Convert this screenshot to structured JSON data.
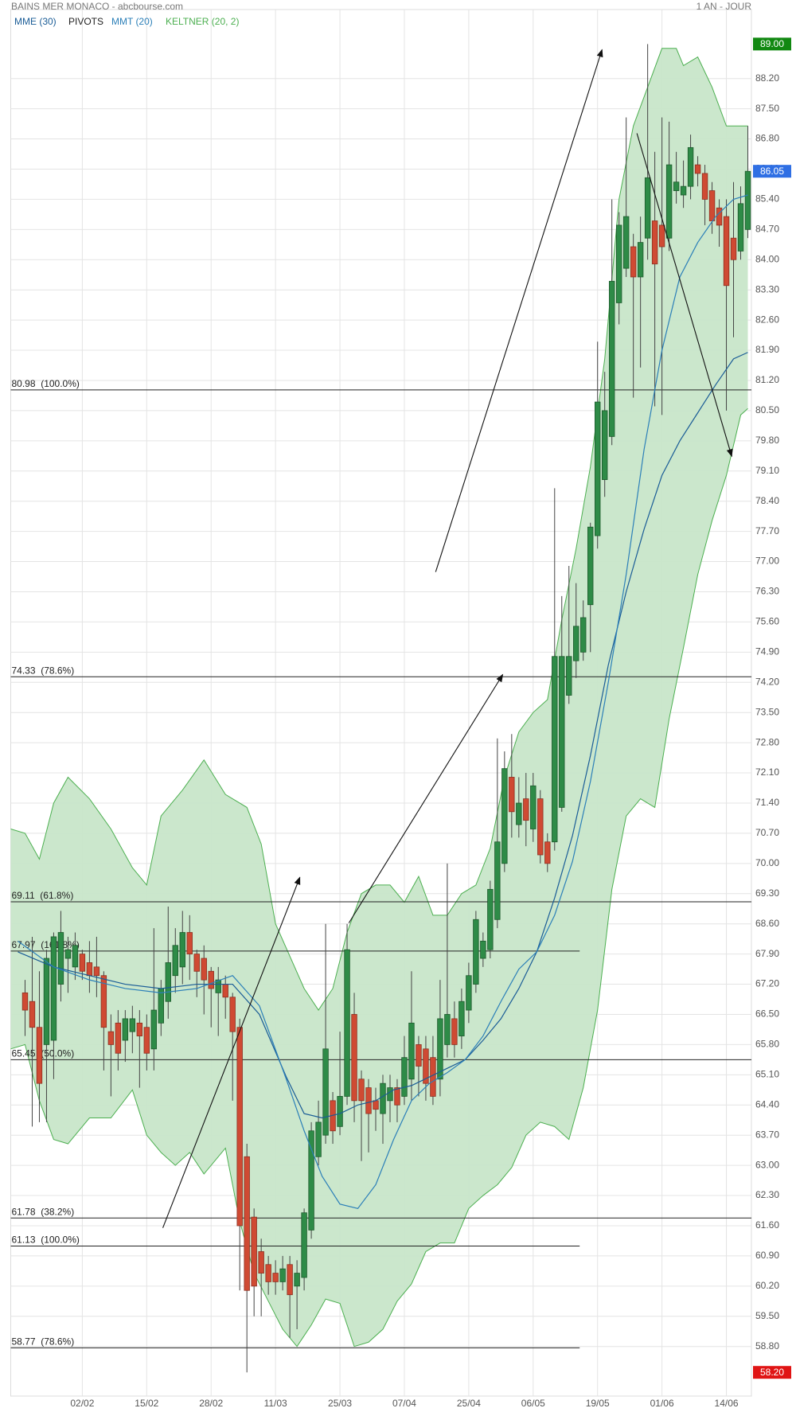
{
  "chart_data": {
    "type": "candlestick",
    "title": "BAINS MER MONACO - abcbourse.com",
    "period": "1 AN - JOUR",
    "up_color": "#2e8b47",
    "down_color": "#cf4a33",
    "grid": true,
    "xlim": [
      -2,
      101.5
    ],
    "xticks": [
      {
        "value": 8,
        "label": "02/02"
      },
      {
        "value": 17,
        "label": "15/02"
      },
      {
        "value": 26,
        "label": "28/02"
      },
      {
        "value": 35,
        "label": "11/03"
      },
      {
        "value": 44,
        "label": "25/03"
      },
      {
        "value": 53,
        "label": "07/04"
      },
      {
        "value": 62,
        "label": "25/04"
      },
      {
        "value": 71,
        "label": "06/05"
      },
      {
        "value": 80,
        "label": "19/05"
      },
      {
        "value": 89,
        "label": "01/06"
      },
      {
        "value": 98,
        "label": "14/06"
      }
    ],
    "ylim": [
      57.65,
      89.8
    ],
    "yticks": [
      {
        "value": 58.8,
        "label": "58.80"
      },
      {
        "value": 59.5,
        "label": "59.50"
      },
      {
        "value": 60.2,
        "label": "60.20"
      },
      {
        "value": 60.9,
        "label": "60.90"
      },
      {
        "value": 61.6,
        "label": "61.60"
      },
      {
        "value": 62.3,
        "label": "62.30"
      },
      {
        "value": 63.0,
        "label": "63.00"
      },
      {
        "value": 63.7,
        "label": "63.70"
      },
      {
        "value": 64.4,
        "label": "64.40"
      },
      {
        "value": 65.1,
        "label": "65.10"
      },
      {
        "value": 65.8,
        "label": "65.80"
      },
      {
        "value": 66.5,
        "label": "66.50"
      },
      {
        "value": 67.2,
        "label": "67.20"
      },
      {
        "value": 67.9,
        "label": "67.90"
      },
      {
        "value": 68.6,
        "label": "68.60"
      },
      {
        "value": 69.3,
        "label": "69.30"
      },
      {
        "value": 70.0,
        "label": "70.00"
      },
      {
        "value": 70.7,
        "label": "70.70"
      },
      {
        "value": 71.4,
        "label": "71.40"
      },
      {
        "value": 72.1,
        "label": "72.10"
      },
      {
        "value": 72.8,
        "label": "72.80"
      },
      {
        "value": 73.5,
        "label": "73.50"
      },
      {
        "value": 74.2,
        "label": "74.20"
      },
      {
        "value": 74.9,
        "label": "74.90"
      },
      {
        "value": 75.6,
        "label": "75.60"
      },
      {
        "value": 76.3,
        "label": "76.30"
      },
      {
        "value": 77.0,
        "label": "77.00"
      },
      {
        "value": 77.7,
        "label": "77.70"
      },
      {
        "value": 78.4,
        "label": "78.40"
      },
      {
        "value": 79.1,
        "label": "79.10"
      },
      {
        "value": 79.8,
        "label": "79.80"
      },
      {
        "value": 80.5,
        "label": "80.50"
      },
      {
        "value": 81.2,
        "label": "81.20"
      },
      {
        "value": 81.9,
        "label": "81.90"
      },
      {
        "value": 82.6,
        "label": "82.60"
      },
      {
        "value": 83.3,
        "label": "83.30"
      },
      {
        "value": 84.0,
        "label": "84.00"
      },
      {
        "value": 84.7,
        "label": "84.70"
      },
      {
        "value": 85.4,
        "label": "85.40"
      },
      {
        "value": 86.1,
        "label": "86.10"
      },
      {
        "value": 86.8,
        "label": "86.80"
      },
      {
        "value": 87.5,
        "label": "87.50"
      },
      {
        "value": 88.2,
        "label": "88.20"
      }
    ],
    "open": [
      67.0,
      66.8,
      66.2,
      65.8,
      65.9,
      67.2,
      67.8,
      67.6,
      67.9,
      67.7,
      67.6,
      67.4,
      66.1,
      66.3,
      65.9,
      66.1,
      66.3,
      66.2,
      65.7,
      66.3,
      66.8,
      67.4,
      67.6,
      68.4,
      67.9,
      67.8,
      67.5,
      67.0,
      67.2,
      66.9,
      66.2,
      63.2,
      61.8,
      61.0,
      60.7,
      60.5,
      60.3,
      60.7,
      60.2,
      60.4,
      61.5,
      63.2,
      63.7,
      64.5,
      63.9,
      64.6,
      66.5,
      65.0,
      64.8,
      64.5,
      64.2,
      64.5,
      64.8,
      64.6,
      65.0,
      65.8,
      65.7,
      65.5,
      65.0,
      65.8,
      66.4,
      66.0,
      66.6,
      67.2,
      67.8,
      68.0,
      68.7,
      70.0,
      72.0,
      70.9,
      71.5,
      70.8,
      71.5,
      70.5,
      70.5,
      71.3,
      73.9,
      74.7,
      74.9,
      76.0,
      77.6,
      78.9,
      79.9,
      83.0,
      83.8,
      84.3,
      83.6,
      84.5,
      84.9,
      84.8,
      84.5,
      85.6,
      85.5,
      85.7,
      86.2,
      86.0,
      85.6,
      85.2,
      85.0,
      84.5,
      84.2,
      84.7
    ],
    "high": [
      67.3,
      68.3,
      67.5,
      68.0,
      68.4,
      68.9,
      68.3,
      68.4,
      68.0,
      68.2,
      68.3,
      67.5,
      66.5,
      66.6,
      66.6,
      66.7,
      66.6,
      66.5,
      68.5,
      67.3,
      69.0,
      68.5,
      68.9,
      68.8,
      68.0,
      68.1,
      67.6,
      67.6,
      67.4,
      67.0,
      66.4,
      63.5,
      62.0,
      61.3,
      60.9,
      60.8,
      60.9,
      60.9,
      60.8,
      62.0,
      64.0,
      64.5,
      68.6,
      64.7,
      66.1,
      68.6,
      67.0,
      65.2,
      65.0,
      64.8,
      65.1,
      65.1,
      65.0,
      66.0,
      67.5,
      66.0,
      66.0,
      66.0,
      67.3,
      70.0,
      66.8,
      67.1,
      67.7,
      68.9,
      68.4,
      69.6,
      72.9,
      72.6,
      73.0,
      72.0,
      72.1,
      72.1,
      71.7,
      70.7,
      78.7,
      76.2,
      76.9,
      76.5,
      76.1,
      77.9,
      82.1,
      81.4,
      85.4,
      85.1,
      87.3,
      84.6,
      85.0,
      89.0,
      86.5,
      87.3,
      87.2,
      86.5,
      86.3,
      86.9,
      86.4,
      86.2,
      85.8,
      85.4,
      85.4,
      85.8,
      85.7,
      87.1
    ],
    "low": [
      66.0,
      63.9,
      64.0,
      64.0,
      65.0,
      66.8,
      67.0,
      67.3,
      67.3,
      67.0,
      66.9,
      65.2,
      64.6,
      65.2,
      65.4,
      65.6,
      64.8,
      65.2,
      65.2,
      66.0,
      66.4,
      67.0,
      67.2,
      67.3,
      66.9,
      66.5,
      66.2,
      66.0,
      66.4,
      64.5,
      60.1,
      58.2,
      59.5,
      59.5,
      60.0,
      60.0,
      60.1,
      59.0,
      59.2,
      60.1,
      61.3,
      63.0,
      63.5,
      63.5,
      63.7,
      64.4,
      64.0,
      63.1,
      63.3,
      63.8,
      63.5,
      64.0,
      64.0,
      64.4,
      64.5,
      64.6,
      64.5,
      64.4,
      64.6,
      65.5,
      65.5,
      65.7,
      66.3,
      67.0,
      67.6,
      67.8,
      68.5,
      69.8,
      70.6,
      70.6,
      70.4,
      70.5,
      70.0,
      69.8,
      70.3,
      71.2,
      73.7,
      74.3,
      74.7,
      74.9,
      77.3,
      78.5,
      79.7,
      82.5,
      83.6,
      80.8,
      81.5,
      84.0,
      80.6,
      80.4,
      84.2,
      85.3,
      85.2,
      85.4,
      85.7,
      84.8,
      84.6,
      84.3,
      80.5,
      82.2,
      84.0,
      84.5
    ],
    "close": [
      66.6,
      66.2,
      64.9,
      67.8,
      68.3,
      68.4,
      68.0,
      68.1,
      67.5,
      67.4,
      67.4,
      66.2,
      65.8,
      65.6,
      66.4,
      66.4,
      66.0,
      65.6,
      66.6,
      67.1,
      67.7,
      68.1,
      68.4,
      67.9,
      67.5,
      67.3,
      67.1,
      67.3,
      66.9,
      66.1,
      61.6,
      60.1,
      60.2,
      60.5,
      60.3,
      60.3,
      60.6,
      60.0,
      60.5,
      61.9,
      63.8,
      64.0,
      65.7,
      63.8,
      64.6,
      68.0,
      64.5,
      64.5,
      64.2,
      64.3,
      64.9,
      64.8,
      64.4,
      65.5,
      66.3,
      65.3,
      64.9,
      64.6,
      66.4,
      66.5,
      65.8,
      66.8,
      67.4,
      68.7,
      68.2,
      69.4,
      70.5,
      72.2,
      71.2,
      71.4,
      71.0,
      71.8,
      70.2,
      70.0,
      74.8,
      74.8,
      74.8,
      75.5,
      75.7,
      77.8,
      80.7,
      80.5,
      83.5,
      84.8,
      85.0,
      83.6,
      84.4,
      85.9,
      83.9,
      84.3,
      86.2,
      85.8,
      85.7,
      86.6,
      86.0,
      85.4,
      84.9,
      84.8,
      83.4,
      84.0,
      85.3,
      86.05
    ],
    "series": [
      {
        "name": "MME (30)",
        "color": "#1a5c96",
        "x": [
          -1,
          4,
          9,
          14,
          19,
          24,
          29,
          32.75,
          36.5,
          39,
          41.5,
          44,
          46.5,
          49,
          51.5,
          54,
          56.5,
          59,
          61.5,
          64,
          66.5,
          69,
          71.5,
          74,
          76.5,
          79,
          81.5,
          84,
          86.5,
          89,
          91.5,
          94,
          96.5,
          99,
          101
        ],
        "values": [
          67.95,
          67.6,
          67.4,
          67.2,
          67.1,
          67.2,
          67.2,
          66.5,
          65.05,
          64.2,
          64.1,
          64.2,
          64.4,
          64.5,
          64.75,
          64.85,
          65.05,
          65.25,
          65.45,
          65.9,
          66.4,
          67.1,
          67.95,
          69.2,
          70.65,
          72.5,
          74.6,
          76.3,
          77.75,
          79.0,
          79.8,
          80.45,
          81.1,
          81.7,
          81.85
        ]
      },
      {
        "name": "MMT (20)",
        "color": "#2b7fb8",
        "x": [
          -1,
          4,
          9,
          14,
          19,
          24,
          29,
          32.75,
          36.5,
          39,
          41.5,
          44,
          46.5,
          49,
          51.5,
          54,
          56.5,
          59,
          61.5,
          64,
          66.5,
          69,
          71.5,
          74,
          76.5,
          79,
          81.5,
          84,
          86.5,
          89,
          91.5,
          94,
          96.5,
          99,
          101
        ],
        "values": [
          68.2,
          67.6,
          67.3,
          67.1,
          67.0,
          67.1,
          67.4,
          66.7,
          65.0,
          63.8,
          62.75,
          62.1,
          62.0,
          62.55,
          63.6,
          64.5,
          64.9,
          65.15,
          65.45,
          66.0,
          66.8,
          67.55,
          67.95,
          68.8,
          70.05,
          71.9,
          74.2,
          76.7,
          79.6,
          81.9,
          83.6,
          84.4,
          85.0,
          85.4,
          85.5
        ]
      }
    ],
    "pivots": {
      "name": "PIVOTS",
      "color": "#222222",
      "levels": [
        {
          "value": 80.98,
          "label": "80.98  (100.0%)",
          "xlim": [
            -2,
            101.5
          ]
        },
        {
          "value": 74.33,
          "label": "74.33  (78.6%)",
          "xlim": [
            -2,
            101.5
          ]
        },
        {
          "value": 69.11,
          "label": "69.11  (61.8%)",
          "xlim": [
            -2,
            101.5
          ]
        },
        {
          "value": 67.97,
          "label": "67.97  (161.8%)",
          "xlim": [
            -2,
            77.5
          ]
        },
        {
          "value": 65.45,
          "label": "65.45  (50.0%)",
          "xlim": [
            -2,
            101.5
          ]
        },
        {
          "value": 61.78,
          "label": "61.78  (38.2%)",
          "xlim": [
            -2,
            101.5
          ]
        },
        {
          "value": 61.13,
          "label": "61.13  (100.0%)",
          "xlim": [
            -2,
            77.5
          ]
        },
        {
          "value": 58.77,
          "label": "58.77  (78.6%)",
          "xlim": [
            -2,
            77.5
          ]
        }
      ]
    },
    "keltner": {
      "name": "KELTNER (20, 2)",
      "color": "#4caf50",
      "fill": "#c8e6c9",
      "upper": {
        "x": [
          -2,
          0,
          2,
          4,
          6,
          9,
          12,
          15,
          17,
          19,
          22,
          25,
          28,
          31,
          33,
          35,
          37,
          39,
          41,
          43,
          45,
          47,
          49,
          51,
          53,
          55,
          57,
          59,
          61,
          63,
          65,
          67,
          69,
          71,
          73,
          75,
          77,
          79,
          81,
          83,
          85,
          87,
          89,
          91,
          92,
          94,
          96,
          98,
          101
        ],
        "values": [
          70.8,
          70.7,
          70.1,
          71.4,
          72.0,
          71.5,
          70.8,
          69.9,
          69.5,
          71.1,
          71.7,
          72.4,
          71.6,
          71.3,
          70.45,
          68.6,
          67.85,
          67.1,
          66.6,
          67.1,
          68.4,
          69.3,
          69.5,
          69.5,
          69.1,
          69.7,
          68.8,
          68.8,
          69.3,
          69.5,
          70.35,
          72.0,
          73.05,
          73.5,
          73.8,
          75.65,
          77.3,
          79.2,
          81.7,
          85.4,
          87.1,
          88.0,
          88.9,
          88.9,
          88.5,
          88.7,
          88.0,
          87.1,
          87.1
        ]
      },
      "lower": {
        "x": [
          -2,
          0,
          2,
          4,
          6,
          9,
          12,
          15,
          17,
          19,
          21,
          23,
          25,
          28,
          30,
          32,
          34,
          36,
          38,
          40,
          42,
          44,
          46,
          48,
          50,
          52,
          54,
          56,
          58,
          60,
          62,
          64,
          66,
          68,
          70,
          72,
          74,
          76,
          78,
          80,
          82,
          84,
          86,
          88,
          90,
          92,
          94,
          96,
          98,
          100,
          101
        ],
        "values": [
          65.7,
          65.8,
          64.5,
          63.6,
          63.5,
          64.1,
          64.1,
          64.75,
          63.7,
          63.3,
          63.0,
          63.3,
          62.8,
          63.4,
          61.7,
          60.5,
          59.85,
          59.2,
          58.8,
          59.3,
          59.9,
          59.8,
          58.8,
          58.9,
          59.2,
          59.85,
          60.25,
          61.0,
          61.2,
          61.2,
          62.0,
          62.3,
          62.55,
          62.95,
          63.7,
          64.0,
          63.9,
          63.6,
          64.8,
          66.6,
          69.4,
          71.1,
          71.5,
          71.3,
          73.35,
          75.0,
          76.7,
          77.95,
          79.0,
          80.4,
          80.55
        ]
      }
    },
    "arrows": [
      {
        "x": [
          19.25,
          38.4
        ],
        "y": [
          61.55,
          69.68
        ]
      },
      {
        "x": [
          45.25,
          66.75
        ],
        "y": [
          68.62,
          74.38
        ]
      },
      {
        "x": [
          57.375,
          80.625
        ],
        "y": [
          76.76,
          88.87
        ]
      },
      {
        "x": [
          85.5,
          98.75
        ],
        "y": [
          86.93,
          79.44
        ]
      }
    ],
    "price_flags": [
      {
        "value": 89.0,
        "label": "89.00",
        "color": "#118811"
      },
      {
        "value": 86.05,
        "label": "86.05",
        "color": "#2f6fe4"
      },
      {
        "value": 58.2,
        "label": "58.20",
        "color": "#e01414"
      }
    ]
  }
}
